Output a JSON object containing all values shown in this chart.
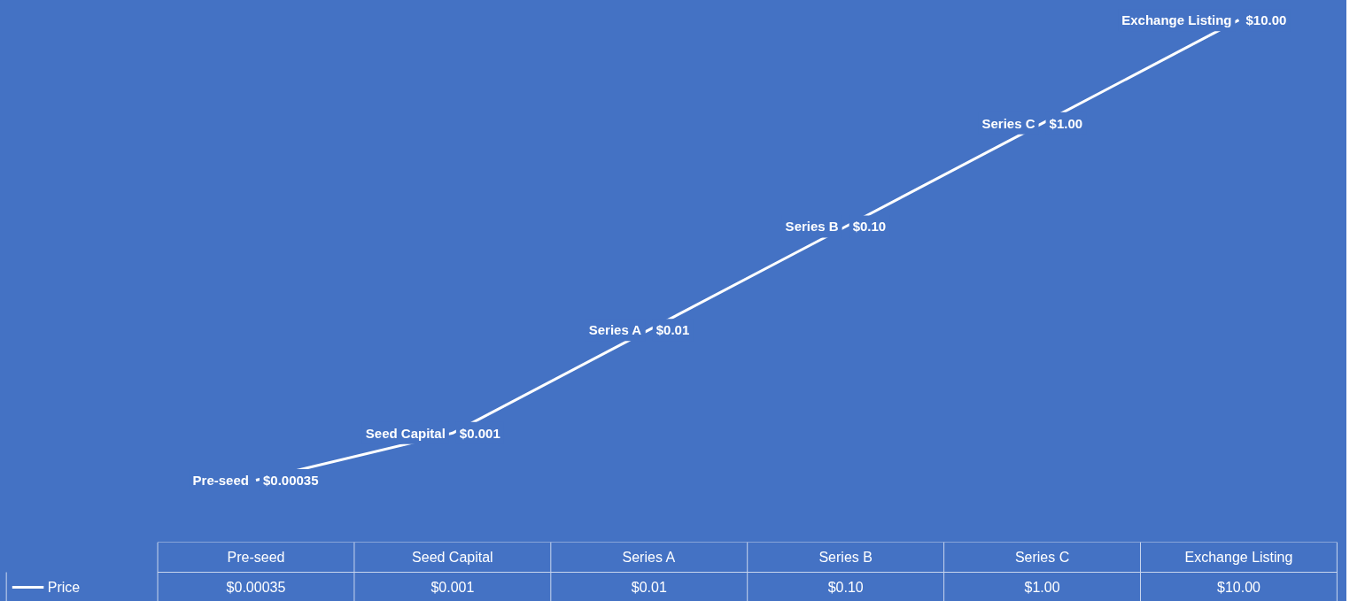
{
  "chart_data": {
    "type": "line",
    "log": true,
    "line_style": "solid",
    "categories": [
      "Pre-seed",
      "Seed Capital",
      "Series A",
      "Series B",
      "Series C",
      "Exchange Listing"
    ],
    "series": [
      {
        "name": "Price",
        "color": "#ffffff",
        "values": [
          0.00035,
          0.001,
          0.01,
          0.1,
          1,
          10
        ],
        "value_labels": [
          "$0.00035",
          "$0.001",
          "$0.01",
          "$0.10",
          "$1.00",
          "$10.00"
        ]
      }
    ],
    "data_labels": true
  }
}
